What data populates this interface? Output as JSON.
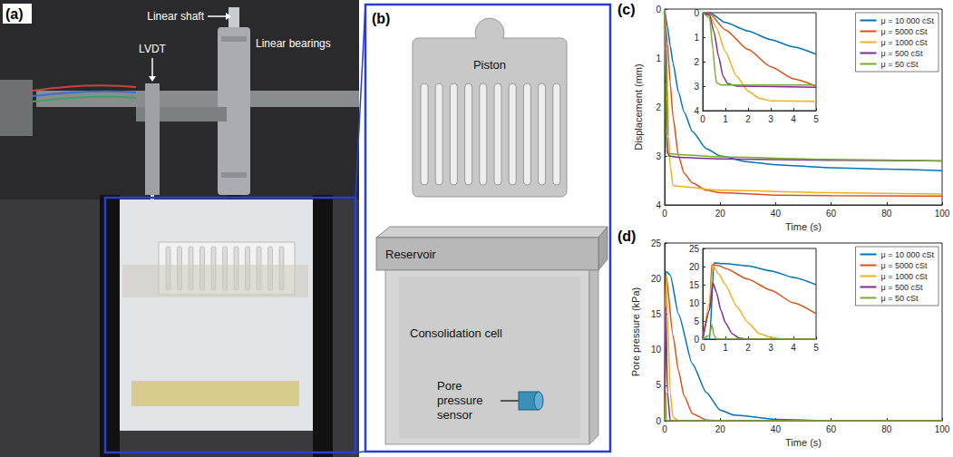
{
  "photo": {
    "label": "(a)",
    "annotations": {
      "linear_shaft": "Linear shaft",
      "lvdt": "LVDT",
      "linear_bearings": "Linear bearings"
    }
  },
  "diagram": {
    "label": "(b)",
    "piston": "Piston",
    "reservoir": "Reservoir",
    "cell": "Consolidation cell",
    "sensor": "Pore pressure sensor"
  },
  "chart_data": [
    {
      "label": "(c)",
      "type": "line",
      "x_label": "Time (s)",
      "y_label": "Displacement (mm)",
      "xlim": [
        0,
        100
      ],
      "xticks": [
        0,
        20,
        40,
        60,
        80,
        100
      ],
      "ylim": [
        4,
        0
      ],
      "yticks": [
        0,
        1,
        2,
        3,
        4
      ],
      "grid": false,
      "legend": "upper right",
      "series": [
        {
          "name": "μ = 10 000 cSt",
          "color": "#0072BD",
          "x": [
            0,
            1,
            2,
            3,
            5,
            7,
            10,
            15,
            20,
            30,
            40,
            60,
            80,
            100
          ],
          "values": [
            0,
            0.35,
            0.75,
            1.1,
            1.7,
            2.1,
            2.5,
            2.85,
            3.0,
            3.12,
            3.18,
            3.24,
            3.27,
            3.3
          ]
        },
        {
          "name": "μ = 5000 cSt",
          "color": "#D95319",
          "x": [
            0,
            1,
            2,
            3,
            5,
            7,
            10,
            15,
            20,
            40,
            60,
            100
          ],
          "values": [
            0,
            0.7,
            1.5,
            2.2,
            3.0,
            3.35,
            3.55,
            3.7,
            3.75,
            3.8,
            3.81,
            3.82
          ]
        },
        {
          "name": "μ = 1000 cSt",
          "color": "#EDB120",
          "x": [
            0,
            0.5,
            1,
            1.5,
            2,
            3,
            5,
            20,
            60,
            100
          ],
          "values": [
            0,
            0.6,
            1.6,
            2.6,
            3.2,
            3.6,
            3.62,
            3.7,
            3.75,
            3.78
          ]
        },
        {
          "name": "μ = 500 cSt",
          "color": "#7E2F8E",
          "x": [
            0,
            0.5,
            0.7,
            0.9,
            1.1,
            1.5,
            5,
            20,
            60,
            100
          ],
          "values": [
            0,
            0.8,
            1.8,
            2.6,
            2.9,
            3.0,
            3.03,
            3.06,
            3.09,
            3.1
          ]
        },
        {
          "name": "μ = 50 cSt",
          "color": "#77AC30",
          "x": [
            0,
            0.45,
            0.55,
            0.6,
            0.8,
            5,
            20,
            60,
            100
          ],
          "values": [
            0,
            1.5,
            2.5,
            2.85,
            2.95,
            2.97,
            3.02,
            3.07,
            3.1
          ]
        }
      ],
      "inset": {
        "type": "line",
        "xlim": [
          0,
          5
        ],
        "xticks": [
          0,
          1,
          2,
          3,
          4,
          5
        ],
        "ylim": [
          4,
          0
        ],
        "yticks": [
          0,
          1,
          2,
          3,
          4
        ],
        "grid": false,
        "series": [
          {
            "name": "μ = 10 000 cSt",
            "color": "#0072BD",
            "x": [
              0,
              0.3,
              1,
              2,
              3,
              4,
              5
            ],
            "values": [
              0,
              0,
              0.4,
              0.75,
              1.1,
              1.4,
              1.7
            ]
          },
          {
            "name": "μ = 5000 cSt",
            "color": "#D95319",
            "x": [
              0,
              0.3,
              1,
              2,
              3,
              4,
              5
            ],
            "values": [
              0,
              0.05,
              0.7,
              1.5,
              2.2,
              2.7,
              3.0
            ]
          },
          {
            "name": "μ = 1000 cSt",
            "color": "#EDB120",
            "x": [
              0,
              0.3,
              0.6,
              1,
              1.5,
              2,
              2.5,
              3,
              5
            ],
            "values": [
              0,
              0.1,
              0.6,
              1.6,
              2.6,
              3.2,
              3.5,
              3.6,
              3.62
            ]
          },
          {
            "name": "μ = 500 cSt",
            "color": "#7E2F8E",
            "x": [
              0,
              0.3,
              0.5,
              0.7,
              0.9,
              1.1,
              1.5,
              5
            ],
            "values": [
              0,
              0.1,
              0.8,
              1.8,
              2.6,
              2.9,
              3.0,
              3.05
            ]
          },
          {
            "name": "μ = 50 cSt",
            "color": "#77AC30",
            "x": [
              0,
              0.3,
              0.45,
              0.55,
              0.6,
              0.8,
              5
            ],
            "values": [
              0,
              0.2,
              1.5,
              2.5,
              2.85,
              2.95,
              2.95
            ]
          }
        ]
      }
    },
    {
      "label": "(d)",
      "type": "line",
      "x_label": "Time (s)",
      "y_label": "Pore pressure (kPa)",
      "xlim": [
        0,
        100
      ],
      "xticks": [
        0,
        20,
        40,
        60,
        80,
        100
      ],
      "ylim": [
        0,
        25
      ],
      "yticks": [
        0,
        5,
        10,
        15,
        20,
        25
      ],
      "grid": false,
      "legend": "upper right",
      "series": [
        {
          "name": "μ = 10 000 cSt",
          "color": "#0072BD",
          "x": [
            0,
            0.5,
            2,
            5,
            10,
            15,
            20,
            25,
            40,
            60,
            100
          ],
          "values": [
            0,
            21,
            20.5,
            15,
            8,
            4,
            1.5,
            0.8,
            0.2,
            0,
            0
          ]
        },
        {
          "name": "μ = 5000 cSt",
          "color": "#D95319",
          "x": [
            0,
            0.5,
            3,
            5,
            7,
            10,
            15,
            20,
            100
          ],
          "values": [
            0,
            20.5,
            12,
            7,
            3.5,
            1,
            0.1,
            0,
            0
          ]
        },
        {
          "name": "μ = 1000 cSt",
          "color": "#EDB120",
          "x": [
            0,
            0.5,
            1,
            2,
            3,
            5,
            100
          ],
          "values": [
            0,
            20.5,
            15,
            4,
            0.5,
            0,
            0
          ]
        },
        {
          "name": "μ = 500 cSt",
          "color": "#7E2F8E",
          "x": [
            0,
            0.4,
            1,
            2,
            100
          ],
          "values": [
            0,
            16,
            4,
            0,
            0
          ]
        },
        {
          "name": "μ = 50 cSt",
          "color": "#77AC30",
          "x": [
            0,
            0.4,
            0.6,
            100
          ],
          "values": [
            0,
            4,
            0,
            0
          ]
        }
      ],
      "inset": {
        "type": "line",
        "xlim": [
          0,
          5
        ],
        "xticks": [
          0,
          1,
          2,
          3,
          4,
          5
        ],
        "ylim": [
          0,
          25
        ],
        "yticks": [
          0,
          5,
          10,
          15,
          20,
          25
        ],
        "grid": false,
        "series": [
          {
            "name": "μ = 10 000 cSt",
            "color": "#0072BD",
            "x": [
              0,
              0.3,
              0.5,
              1,
              2,
              3,
              4,
              5
            ],
            "values": [
              0,
              0,
              21,
              20.8,
              20.2,
              18.8,
              17,
              15
            ]
          },
          {
            "name": "μ = 5000 cSt",
            "color": "#D95319",
            "x": [
              0,
              0.3,
              0.4,
              0.7,
              1,
              2,
              3,
              4,
              5
            ],
            "values": [
              0,
              8,
              20.5,
              20.3,
              19.5,
              16.5,
              13.5,
              10,
              7
            ]
          },
          {
            "name": "μ = 1000 cSt",
            "color": "#EDB120",
            "x": [
              0,
              0.3,
              0.45,
              0.7,
              1,
              1.5,
              2,
              2.5,
              3,
              3.5,
              5
            ],
            "values": [
              0,
              10,
              20.3,
              18,
              15,
              9,
              4.5,
              1.5,
              0.5,
              0,
              0
            ]
          },
          {
            "name": "μ = 500 cSt",
            "color": "#7E2F8E",
            "x": [
              0,
              0.3,
              0.45,
              0.6,
              0.8,
              1,
              1.3,
              1.6,
              2,
              5
            ],
            "values": [
              0,
              8,
              15.5,
              13,
              8,
              4.5,
              1.5,
              0.3,
              0,
              0
            ]
          },
          {
            "name": "μ = 50 cSt",
            "color": "#77AC30",
            "x": [
              0,
              0.3,
              0.4,
              0.5,
              0.6,
              5
            ],
            "values": [
              0,
              1,
              4,
              1,
              0,
              0
            ]
          }
        ]
      }
    }
  ]
}
